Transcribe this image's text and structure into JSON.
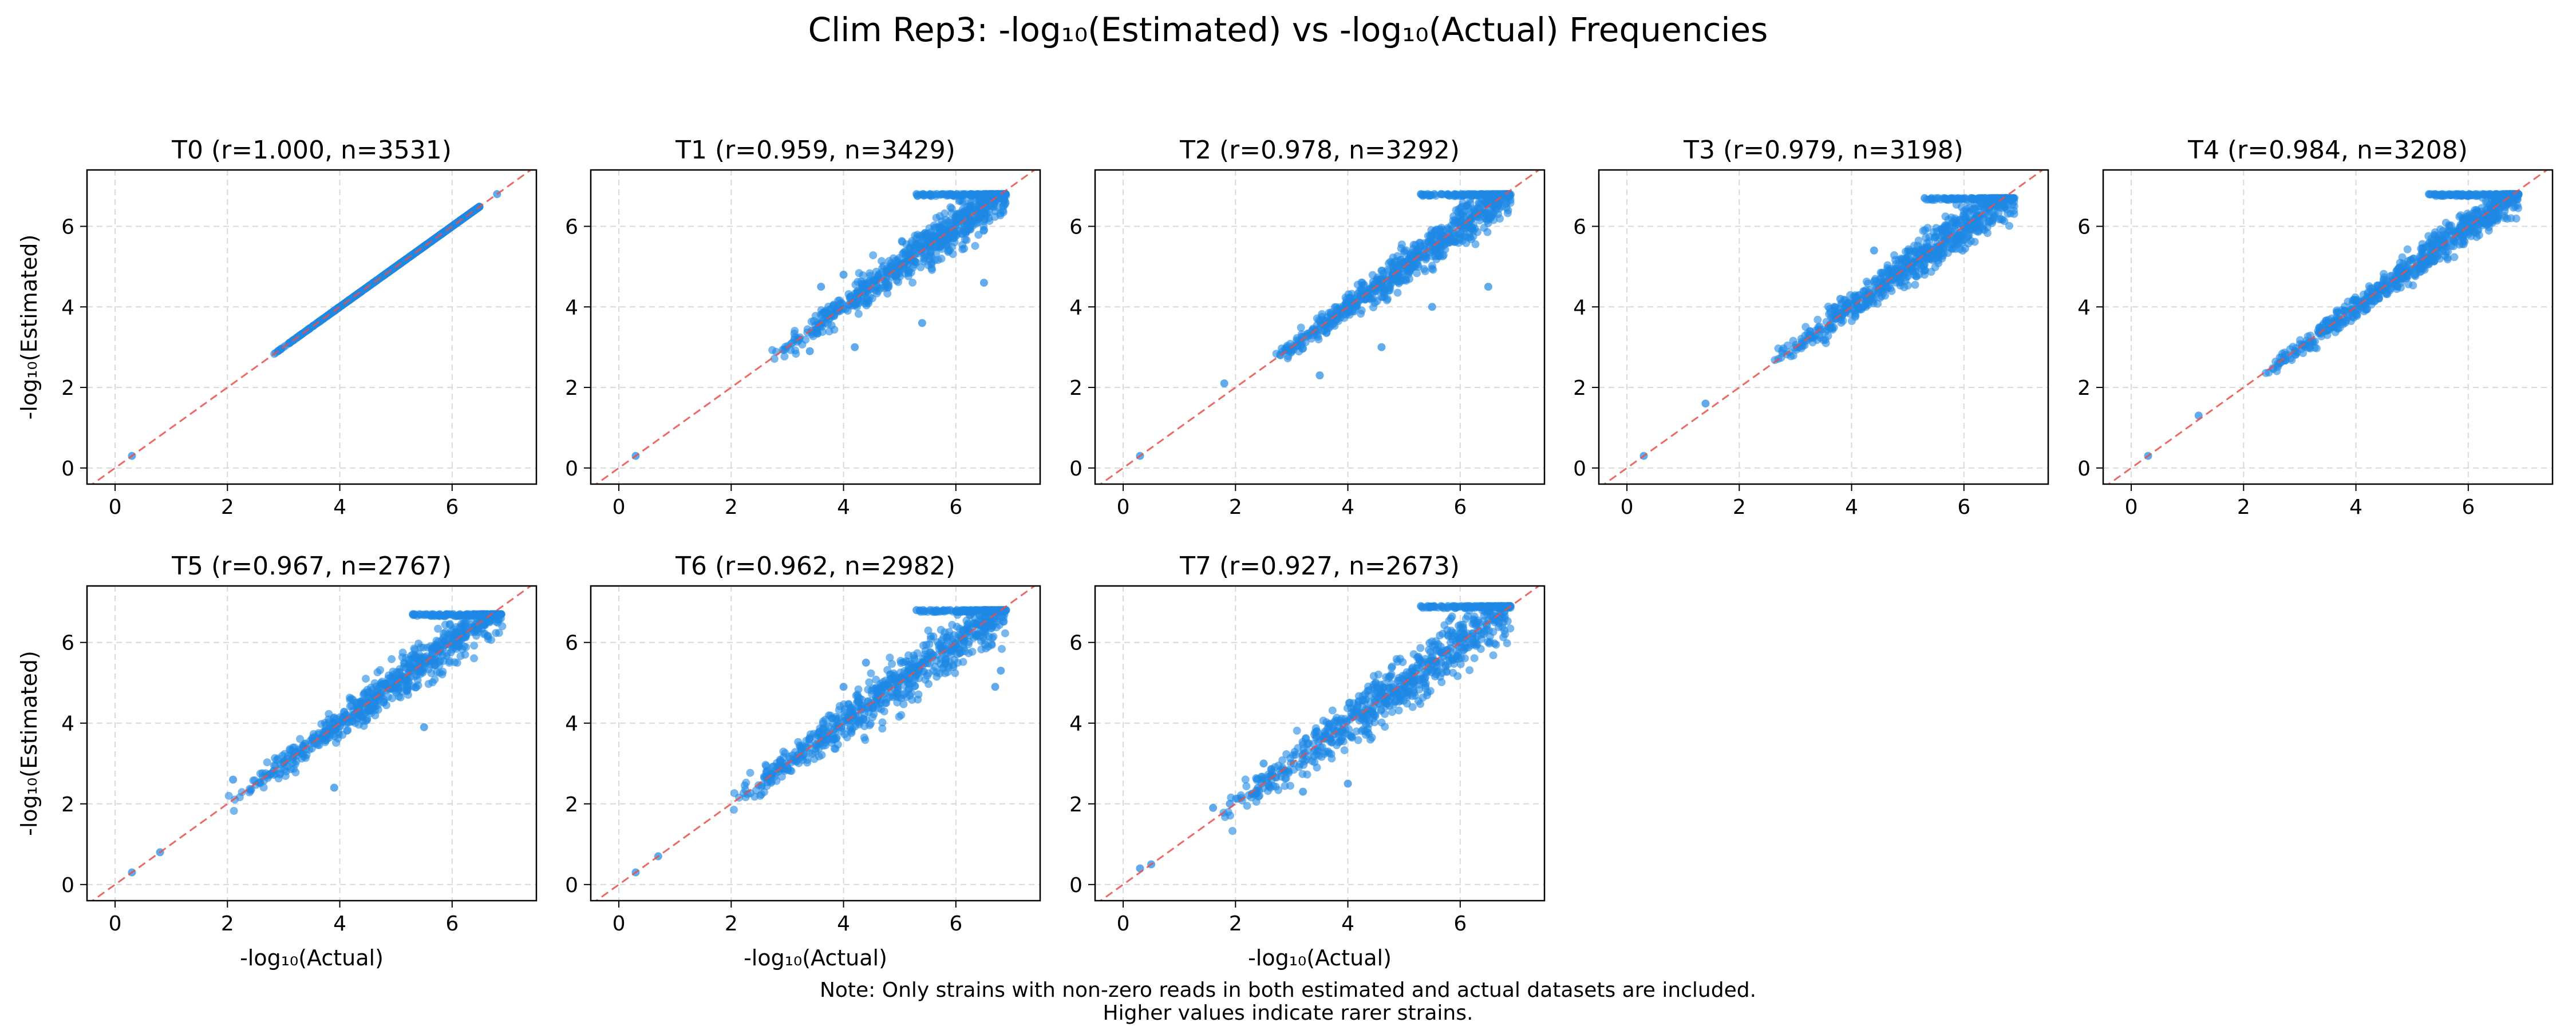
{
  "figure": {
    "title": "Clim Rep3: -log₁₀(Estimated) vs -log₁₀(Actual) Frequencies",
    "note_line1": "Note: Only strains with non-zero reads in both estimated and actual datasets are included.",
    "note_line2": "Higher values indicate rarer strains."
  },
  "colors": {
    "points": "#1e88e5",
    "reference_line": "#e8504a",
    "grid": "#d9d9d9"
  },
  "chart_data": [
    {
      "type": "scatter",
      "title": "T0 (r=1.000, n=3531)",
      "xlabel": "",
      "ylabel": "-log₁₀(Estimated)",
      "xlim": [
        -0.5,
        7.5
      ],
      "ylim": [
        -0.4,
        7.4
      ],
      "xticks": [
        0,
        2,
        4,
        6
      ],
      "yticks": [
        0,
        2,
        4,
        6
      ],
      "grid": true,
      "r": 1.0,
      "n": 3531,
      "x_range": [
        2.8,
        6.5
      ],
      "spread": 0.0,
      "spread_high": 0.0,
      "cap": 6.8,
      "outliers": [
        [
          0.3,
          0.3
        ],
        [
          6.8,
          6.8
        ]
      ]
    },
    {
      "type": "scatter",
      "title": "T1 (r=0.959, n=3429)",
      "xlabel": "",
      "ylabel": "",
      "xlim": [
        -0.5,
        7.5
      ],
      "ylim": [
        -0.4,
        7.4
      ],
      "xticks": [
        0,
        2,
        4,
        6
      ],
      "yticks": [
        0,
        2,
        4,
        6
      ],
      "grid": true,
      "r": 0.959,
      "n": 3429,
      "x_range": [
        2.7,
        6.9
      ],
      "spread": 0.12,
      "spread_high": 0.32,
      "cap": 6.8,
      "outliers": [
        [
          0.3,
          0.3
        ],
        [
          3.4,
          2.9
        ],
        [
          4.2,
          3.0
        ],
        [
          5.4,
          3.6
        ],
        [
          6.5,
          4.6
        ],
        [
          3.6,
          4.5
        ],
        [
          4.0,
          4.8
        ]
      ]
    },
    {
      "type": "scatter",
      "title": "T2 (r=0.978, n=3292)",
      "xlabel": "",
      "ylabel": "",
      "xlim": [
        -0.5,
        7.5
      ],
      "ylim": [
        -0.4,
        7.4
      ],
      "xticks": [
        0,
        2,
        4,
        6
      ],
      "yticks": [
        0,
        2,
        4,
        6
      ],
      "grid": true,
      "r": 0.978,
      "n": 3292,
      "x_range": [
        2.6,
        6.9
      ],
      "spread": 0.1,
      "spread_high": 0.3,
      "cap": 6.8,
      "outliers": [
        [
          0.3,
          0.3
        ],
        [
          1.8,
          2.1
        ],
        [
          3.5,
          2.3
        ],
        [
          4.6,
          3.0
        ],
        [
          5.5,
          4.0
        ],
        [
          6.5,
          4.5
        ]
      ]
    },
    {
      "type": "scatter",
      "title": "T3 (r=0.979, n=3198)",
      "xlabel": "",
      "ylabel": "",
      "xlim": [
        -0.5,
        7.5
      ],
      "ylim": [
        -0.4,
        7.4
      ],
      "xticks": [
        0,
        2,
        4,
        6
      ],
      "yticks": [
        0,
        2,
        4,
        6
      ],
      "grid": true,
      "r": 0.979,
      "n": 3198,
      "x_range": [
        2.5,
        6.9
      ],
      "spread": 0.1,
      "spread_high": 0.32,
      "cap": 6.7,
      "outliers": [
        [
          0.3,
          0.3
        ],
        [
          1.4,
          1.6
        ],
        [
          3.8,
          4.2
        ],
        [
          4.4,
          5.4
        ]
      ]
    },
    {
      "type": "scatter",
      "title": "T4 (r=0.984, n=3208)",
      "xlabel": "",
      "ylabel": "",
      "xlim": [
        -0.5,
        7.5
      ],
      "ylim": [
        -0.4,
        7.4
      ],
      "xticks": [
        0,
        2,
        4,
        6
      ],
      "yticks": [
        0,
        2,
        4,
        6
      ],
      "grid": true,
      "r": 0.984,
      "n": 3208,
      "x_range": [
        2.3,
        6.9
      ],
      "spread": 0.08,
      "spread_high": 0.25,
      "cap": 6.8,
      "outliers": [
        [
          0.3,
          0.3
        ],
        [
          1.2,
          1.3
        ]
      ]
    },
    {
      "type": "scatter",
      "title": "T5 (r=0.967, n=2767)",
      "xlabel": "-log₁₀(Actual)",
      "ylabel": "-log₁₀(Estimated)",
      "xlim": [
        -0.5,
        7.5
      ],
      "ylim": [
        -0.4,
        7.4
      ],
      "xticks": [
        0,
        2,
        4,
        6
      ],
      "yticks": [
        0,
        2,
        4,
        6
      ],
      "grid": true,
      "r": 0.967,
      "n": 2767,
      "x_range": [
        2.0,
        6.9
      ],
      "spread": 0.12,
      "spread_high": 0.3,
      "cap": 6.7,
      "outliers": [
        [
          0.3,
          0.3
        ],
        [
          0.8,
          0.8
        ],
        [
          3.9,
          2.4
        ],
        [
          5.5,
          3.9
        ],
        [
          2.1,
          2.6
        ]
      ]
    },
    {
      "type": "scatter",
      "title": "T6 (r=0.962, n=2982)",
      "xlabel": "-log₁₀(Actual)",
      "ylabel": "",
      "xlim": [
        -0.5,
        7.5
      ],
      "ylim": [
        -0.4,
        7.4
      ],
      "xticks": [
        0,
        2,
        4,
        6
      ],
      "yticks": [
        0,
        2,
        4,
        6
      ],
      "grid": true,
      "r": 0.962,
      "n": 2982,
      "x_range": [
        2.0,
        6.9
      ],
      "spread": 0.14,
      "spread_high": 0.38,
      "cap": 6.8,
      "outliers": [
        [
          0.3,
          0.3
        ],
        [
          0.7,
          0.7
        ],
        [
          6.7,
          4.9
        ],
        [
          6.8,
          5.3
        ],
        [
          4.4,
          5.5
        ],
        [
          4.0,
          4.9
        ]
      ]
    },
    {
      "type": "scatter",
      "title": "T7 (r=0.927, n=2673)",
      "xlabel": "-log₁₀(Actual)",
      "ylabel": "",
      "xlim": [
        -0.5,
        7.5
      ],
      "ylim": [
        -0.4,
        7.4
      ],
      "xticks": [
        0,
        2,
        4,
        6
      ],
      "yticks": [
        0,
        2,
        4,
        6
      ],
      "grid": true,
      "r": 0.927,
      "n": 2673,
      "x_range": [
        1.6,
        6.9
      ],
      "spread": 0.2,
      "spread_high": 0.42,
      "cap": 6.9,
      "outliers": [
        [
          0.3,
          0.4
        ],
        [
          0.5,
          0.5
        ],
        [
          1.6,
          1.9
        ],
        [
          1.9,
          2.0
        ],
        [
          2.4,
          2.4
        ],
        [
          3.2,
          2.3
        ],
        [
          4.0,
          2.5
        ],
        [
          2.5,
          3.0
        ],
        [
          3.3,
          3.5
        ]
      ]
    }
  ]
}
